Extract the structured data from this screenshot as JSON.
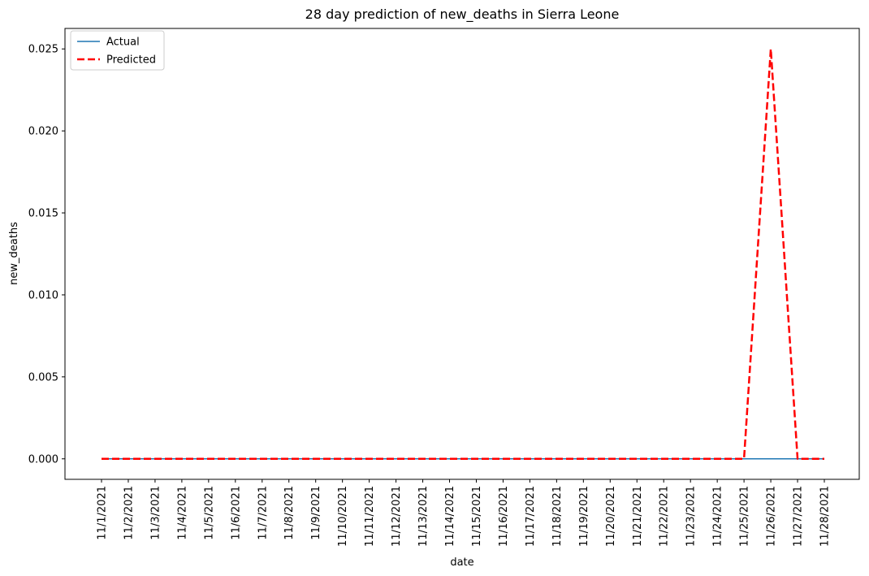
{
  "chart_data": {
    "type": "line",
    "title": "28 day prediction of new_deaths in Sierra Leone",
    "xlabel": "date",
    "ylabel": "new_deaths",
    "ylim": [
      -0.00125,
      0.02625
    ],
    "yticks": [
      0.0,
      0.005,
      0.01,
      0.015,
      0.02,
      0.025
    ],
    "ytick_labels": [
      "0.000",
      "0.005",
      "0.010",
      "0.015",
      "0.020",
      "0.025"
    ],
    "grid": false,
    "legend_position": "top-left",
    "categories": [
      "11/1/2021",
      "11/2/2021",
      "11/3/2021",
      "11/4/2021",
      "11/5/2021",
      "11/6/2021",
      "11/7/2021",
      "11/8/2021",
      "11/9/2021",
      "11/10/2021",
      "11/11/2021",
      "11/12/2021",
      "11/13/2021",
      "11/14/2021",
      "11/15/2021",
      "11/16/2021",
      "11/17/2021",
      "11/18/2021",
      "11/19/2021",
      "11/20/2021",
      "11/21/2021",
      "11/22/2021",
      "11/23/2021",
      "11/24/2021",
      "11/25/2021",
      "11/26/2021",
      "11/27/2021",
      "11/28/2021"
    ],
    "series": [
      {
        "name": "Actual",
        "color": "#1f77b4",
        "style": "solid",
        "values": [
          0,
          0,
          0,
          0,
          0,
          0,
          0,
          0,
          0,
          0,
          0,
          0,
          0,
          0,
          0,
          0,
          0,
          0,
          0,
          0,
          0,
          0,
          0,
          0,
          0,
          0,
          0,
          0
        ]
      },
      {
        "name": "Predicted",
        "color": "#ff0000",
        "style": "dashed",
        "values": [
          0,
          0,
          0,
          0,
          0,
          0,
          0,
          0,
          0,
          0,
          0,
          0,
          0,
          0,
          0,
          0,
          0,
          0,
          0,
          0,
          0,
          0,
          0,
          0,
          0,
          0.025,
          0,
          0
        ]
      }
    ]
  }
}
